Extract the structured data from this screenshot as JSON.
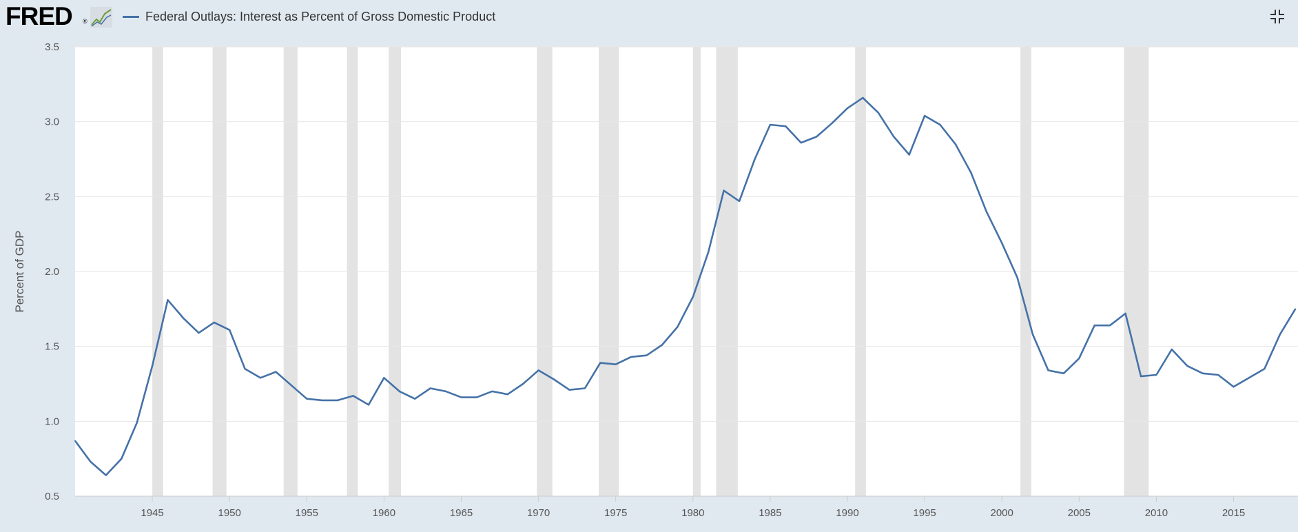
{
  "header": {
    "logo_text": "FRED",
    "logo_mark": "®",
    "logo_icon": "chart-sparkline-icon",
    "series_title": "Federal Outlays: Interest as Percent of Gross Domestic Product",
    "collapse_icon": "collapse-arrows-icon"
  },
  "colors": {
    "line": "#4572a7",
    "recession": "#e3e3e3",
    "grid": "#e6e6e6",
    "background": "#e1e9f0",
    "plot": "#ffffff"
  },
  "chart_data": {
    "type": "line",
    "ylabel": "Percent of GDP",
    "xlabel": "",
    "ylim": [
      0.5,
      3.5
    ],
    "xlim": [
      1940,
      2019
    ],
    "yticks": [
      "0.5",
      "1.0",
      "1.5",
      "2.0",
      "2.5",
      "3.0",
      "3.5"
    ],
    "xticks": [
      "1945",
      "1950",
      "1955",
      "1960",
      "1965",
      "1970",
      "1975",
      "1980",
      "1985",
      "1990",
      "1995",
      "2000",
      "2005",
      "2010",
      "2015"
    ],
    "grid": true,
    "legend": "top-left",
    "recessions": [
      [
        1945.0,
        1945.7
      ],
      [
        1948.9,
        1949.8
      ],
      [
        1953.5,
        1954.4
      ],
      [
        1957.6,
        1958.3
      ],
      [
        1960.3,
        1961.1
      ],
      [
        1969.9,
        1970.9
      ],
      [
        1973.9,
        1975.2
      ],
      [
        1980.0,
        1980.5
      ],
      [
        1981.5,
        1982.9
      ],
      [
        1990.5,
        1991.2
      ],
      [
        2001.2,
        2001.9
      ],
      [
        2007.9,
        2009.5
      ]
    ],
    "series": [
      {
        "name": "Federal Outlays: Interest as Percent of Gross Domestic Product",
        "x": [
          1940,
          1941,
          1942,
          1943,
          1944,
          1945,
          1946,
          1947,
          1948,
          1949,
          1950,
          1951,
          1952,
          1953,
          1954,
          1955,
          1956,
          1957,
          1958,
          1959,
          1960,
          1961,
          1962,
          1963,
          1964,
          1965,
          1966,
          1967,
          1968,
          1969,
          1970,
          1971,
          1972,
          1973,
          1974,
          1975,
          1976,
          1977,
          1978,
          1979,
          1980,
          1981,
          1982,
          1983,
          1984,
          1985,
          1986,
          1987,
          1988,
          1989,
          1990,
          1991,
          1992,
          1993,
          1994,
          1995,
          1996,
          1997,
          1998,
          1999,
          2000,
          2001,
          2002,
          2003,
          2004,
          2005,
          2006,
          2007,
          2008,
          2009,
          2010,
          2011,
          2012,
          2013,
          2014,
          2015,
          2016,
          2017,
          2018,
          2019
        ],
        "values": [
          0.87,
          0.73,
          0.64,
          0.75,
          0.99,
          1.37,
          1.81,
          1.69,
          1.59,
          1.66,
          1.61,
          1.35,
          1.29,
          1.33,
          1.24,
          1.15,
          1.14,
          1.14,
          1.17,
          1.11,
          1.29,
          1.2,
          1.15,
          1.22,
          1.2,
          1.16,
          1.16,
          1.2,
          1.18,
          1.25,
          1.34,
          1.28,
          1.21,
          1.22,
          1.39,
          1.38,
          1.43,
          1.44,
          1.51,
          1.63,
          1.83,
          2.13,
          2.54,
          2.47,
          2.75,
          2.98,
          2.97,
          2.86,
          2.9,
          2.99,
          3.09,
          3.16,
          3.06,
          2.9,
          2.78,
          3.04,
          2.98,
          2.85,
          2.66,
          2.4,
          2.19,
          1.96,
          1.58,
          1.34,
          1.32,
          1.42,
          1.64,
          1.64,
          1.72,
          1.3,
          1.31,
          1.48,
          1.37,
          1.32,
          1.31,
          1.23,
          1.29,
          1.35,
          1.58,
          1.75
        ]
      }
    ]
  }
}
